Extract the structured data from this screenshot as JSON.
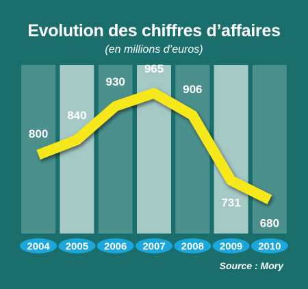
{
  "chart_data": {
    "type": "line",
    "title": "Evolution des chiffres d’affaires",
    "subtitle": "(en millions d’euros)",
    "source": "Source : Mory",
    "categories": [
      "2004",
      "2005",
      "2006",
      "2007",
      "2008",
      "2009",
      "2010"
    ],
    "values": [
      800,
      840,
      930,
      965,
      906,
      731,
      680
    ],
    "value_labels": [
      "800",
      "840",
      "930",
      "965",
      "906",
      "731",
      "680"
    ],
    "colors": {
      "background": "#1a6e6b",
      "band_dark": "#4b908d",
      "band_light": "#a4c8c4",
      "line": "#f7e81c",
      "year_pill": "#1ba7dc",
      "text": "#ffffff"
    },
    "grid": false,
    "legend": "none"
  }
}
